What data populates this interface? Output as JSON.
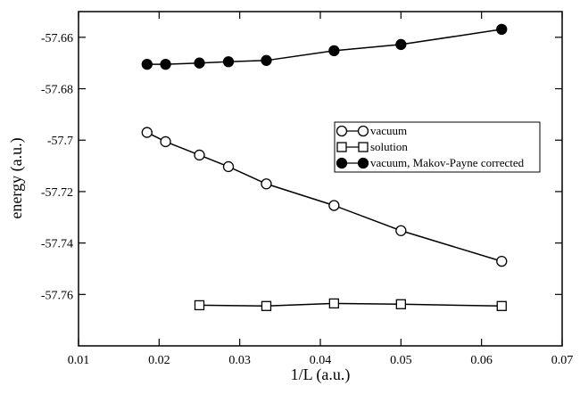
{
  "chart_data": {
    "type": "line",
    "x_label": "1/L (a.u.)",
    "y_label": "energy (a.u.)",
    "xlim": [
      0.01,
      0.07
    ],
    "ylim": [
      -57.78,
      -57.65
    ],
    "xticks": [
      0.01,
      0.02,
      0.03,
      0.04,
      0.05,
      0.06,
      0.07
    ],
    "yticks": [
      -57.76,
      -57.74,
      -57.72,
      {
        "value": -57.7,
        "label": "-57.7"
      },
      -57.68,
      -57.66
    ],
    "series": [
      {
        "name": "vacuum",
        "color": "#000000",
        "marker": "open-circle",
        "x": [
          0.0185,
          0.0208,
          0.025,
          0.0286,
          0.0333,
          0.0417,
          0.05,
          0.0625
        ],
        "values": [
          -57.697,
          -57.7006,
          -57.7058,
          -57.7103,
          -57.717,
          -57.7254,
          -57.7352,
          -57.7471
        ]
      },
      {
        "name": "solution",
        "color": "#000000",
        "marker": "open-square",
        "x": [
          0.025,
          0.0333,
          0.0417,
          0.05,
          0.0625
        ],
        "values": [
          -57.7642,
          -57.7645,
          -57.7635,
          -57.7638,
          -57.7645
        ]
      },
      {
        "name": "vacuum, Makov-Payne corrected",
        "color": "#000000",
        "marker": "filled-circle",
        "x": [
          0.0185,
          0.0208,
          0.025,
          0.0286,
          0.0333,
          0.0417,
          0.05,
          0.0625
        ],
        "values": [
          -57.6705,
          -57.6705,
          -57.67,
          -57.6695,
          -57.669,
          -57.6652,
          -57.6628,
          -57.6569
        ]
      }
    ]
  }
}
